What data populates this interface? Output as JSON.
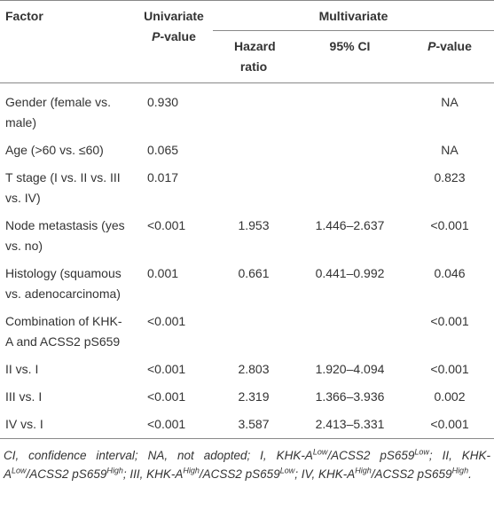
{
  "table": {
    "header": {
      "factor": "Factor",
      "univariate": [
        "Univariate",
        "P",
        "-value"
      ],
      "multivariate": "Multivariate",
      "sub": [
        [
          "Hazard ratio"
        ],
        [
          "95% CI"
        ],
        [
          "P",
          "-value"
        ]
      ]
    },
    "rows": [
      [
        "Gender (female vs. male)",
        "0.930",
        null,
        null,
        "NA"
      ],
      [
        "Age (>60 vs. ≤60)",
        "0.065",
        null,
        null,
        "NA"
      ],
      [
        "T stage (I vs. II vs. III vs. IV)",
        "0.017",
        null,
        null,
        "0.823"
      ],
      [
        "Node metastasis (yes vs. no)",
        "<0.001",
        "1.953",
        "1.446–2.637",
        "<0.001"
      ],
      [
        "Histology (squamous vs. adenocarcinoma)",
        "0.001",
        "0.661",
        "0.441–0.992",
        "0.046"
      ],
      [
        "Combination of KHK-A and ACSS2 pS659",
        "<0.001",
        null,
        null,
        "<0.001"
      ],
      [
        "II vs. I",
        "<0.001",
        "2.803",
        "1.920–4.094",
        "<0.001"
      ],
      [
        "III vs. I",
        "<0.001",
        "2.319",
        "1.366–3.936",
        "0.002"
      ],
      [
        "IV vs. I",
        "<0.001",
        "3.587",
        "2.413–5.331",
        "<0.001"
      ]
    ],
    "footnote": [
      "CI, confidence interval; NA, not adopted; I, KHK-A",
      "Low",
      "/ACSS2 pS659",
      "Low",
      "; II, KHK-A",
      "Low",
      "/ACSS2 pS659",
      "High",
      "; III, KHK-A",
      "High",
      "/ACSS2 pS659",
      "Low",
      "; IV, KHK-A",
      "High",
      "/ACSS2 pS659",
      "High",
      "."
    ]
  }
}
